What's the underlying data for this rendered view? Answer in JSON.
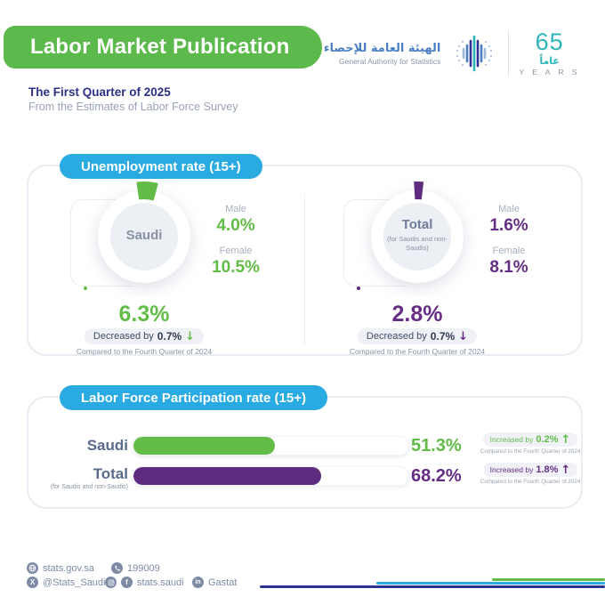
{
  "header": {
    "title": "Labor Market Publication",
    "subtitle": "The First Quarter of 2025",
    "subtitle2": "From the Estimates of Labor Force Survey",
    "logo": {
      "arabic_name": "الهيئة العامة للإحصاء",
      "english_name": "General Authority for Statistics",
      "years_number": "65",
      "years_arabic": "عاماً",
      "years_label": "Y E A R S"
    }
  },
  "unemployment": {
    "title": "Unemployment rate (15+)",
    "groups": [
      {
        "name": "Saudi",
        "subname": "",
        "rate_label": "6.3%",
        "rate_value": 6.3,
        "male_label": "Male",
        "male_value": "4.0%",
        "female_label": "Female",
        "female_value": "10.5%",
        "change_prefix": "Decreased by",
        "change_value": "0.7%",
        "arrow": "↓",
        "compare_note": "Compared to the Fourth Quarter of 2024",
        "accent": "#62BC47"
      },
      {
        "name": "Total",
        "subname": "(for Saudis and non-Saudis)",
        "rate_label": "2.8%",
        "rate_value": 2.8,
        "male_label": "Male",
        "male_value": "1.6%",
        "female_label": "Female",
        "female_value": "8.1%",
        "change_prefix": "Decreased by",
        "change_value": "0.7%",
        "arrow": "↓",
        "compare_note": "Compared to the Fourth Quarter of 2024",
        "accent": "#5E2B7E"
      }
    ]
  },
  "participation": {
    "title": "Labor Force Participation rate (15+)",
    "rows": [
      {
        "label": "Saudi",
        "sublabel": "",
        "value": "51.3%",
        "percent": 51.3,
        "change_prefix": "Increased by",
        "change_value": "0.2%",
        "arrow": "↑",
        "compare_note": "Compared to the Fourth Quarter of 2024",
        "color": "#62BC47"
      },
      {
        "label": "Total",
        "sublabel": "(for Saudis and non-Saudis)",
        "value": "68.2%",
        "percent": 68.2,
        "change_prefix": "Increased by",
        "change_value": "1.8%",
        "arrow": "↑",
        "compare_note": "Compared to the Fourth Quarter of 2024",
        "color": "#5E2B7E"
      }
    ]
  },
  "footer": {
    "website": "stats.gov.sa",
    "phone": "199009",
    "twitter": "@Stats_Saudi",
    "social_handle": "stats.saudi",
    "linkedin": "Gastat"
  },
  "brand_colors": {
    "green": "#5CB94B",
    "chart_green": "#62BC47",
    "cyan": "#29ABE2",
    "purple": "#5E2B7E",
    "navy": "#2E3192",
    "teal": "#2BB5B8"
  },
  "chart_data": [
    {
      "type": "pie",
      "title": "Unemployment rate (15+) — Saudi",
      "labels": [
        "Unemployment rate",
        "Remainder"
      ],
      "values": [
        6.3,
        93.7
      ],
      "annotations": {
        "male": 4.0,
        "female": 10.5,
        "change_vs_previous_quarter": -0.7
      },
      "legend_position": "none"
    },
    {
      "type": "pie",
      "title": "Unemployment rate (15+) — Total (for Saudis and non-Saudis)",
      "labels": [
        "Unemployment rate",
        "Remainder"
      ],
      "values": [
        2.8,
        97.2
      ],
      "annotations": {
        "male": 1.6,
        "female": 8.1,
        "change_vs_previous_quarter": -0.7
      },
      "legend_position": "none"
    },
    {
      "type": "bar",
      "title": "Labor Force Participation rate (15+)",
      "categories": [
        "Saudi",
        "Total (for Saudis and non-Saudis)"
      ],
      "values": [
        51.3,
        68.2
      ],
      "xlim": [
        0,
        100
      ],
      "annotations": {
        "changes_vs_previous_quarter": [
          0.2,
          1.8
        ]
      },
      "orientation": "horizontal",
      "grid": false
    }
  ]
}
